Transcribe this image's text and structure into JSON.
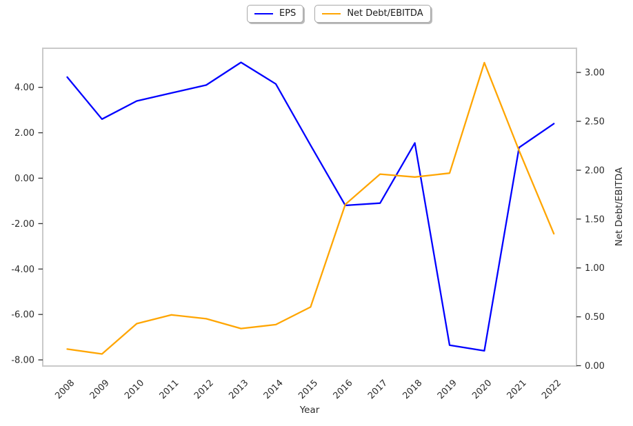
{
  "figure": {
    "background": "#ffffff",
    "spine_color": "#c9c9c9",
    "text_color": "#2b2b2b"
  },
  "legend": {
    "items": [
      {
        "label": "EPS",
        "color": "#0000ff"
      },
      {
        "label": "Net Debt/EBITDA",
        "color": "#ffa500"
      }
    ]
  },
  "chart_data": {
    "type": "line",
    "title": "",
    "xlabel": "Year",
    "right_ylabel": "Net Debt/EBITDA",
    "x": [
      "2008",
      "2009",
      "2010",
      "2011",
      "2012",
      "2013",
      "2014",
      "2015",
      "2016",
      "2017",
      "2018",
      "2019",
      "2020",
      "2021",
      "2022"
    ],
    "series": [
      {
        "name": "EPS",
        "axis": "left",
        "color": "#0000ff",
        "values": [
          4.45,
          2.6,
          3.4,
          3.75,
          4.1,
          5.1,
          4.15,
          1.45,
          -1.2,
          -1.1,
          1.55,
          -7.35,
          -7.6,
          1.35,
          2.4
        ]
      },
      {
        "name": "Net Debt/EBITDA",
        "axis": "right",
        "color": "#ffa500",
        "values": [
          0.17,
          0.12,
          0.43,
          0.52,
          0.48,
          0.38,
          0.42,
          0.6,
          1.65,
          1.96,
          1.93,
          1.97,
          3.1,
          2.2,
          1.35
        ]
      }
    ],
    "left_axis": {
      "tick_values": [
        4,
        2,
        0,
        -2,
        -4,
        -6,
        -8
      ],
      "tick_labels": [
        "4.00",
        "2.00",
        "0.00",
        "-2.00",
        "-4.00",
        "-6.00",
        "-8.00"
      ],
      "range": [
        -8.3,
        5.72
      ]
    },
    "right_axis": {
      "tick_values": [
        3,
        2.5,
        2,
        1.5,
        1,
        0.5,
        0
      ],
      "tick_labels": [
        "3.00",
        "2.50",
        "2.00",
        "1.50",
        "1.00",
        "0.50",
        "0.00"
      ],
      "range": [
        0.0,
        3.25
      ]
    },
    "grid": false,
    "legend_position": "top-center"
  }
}
